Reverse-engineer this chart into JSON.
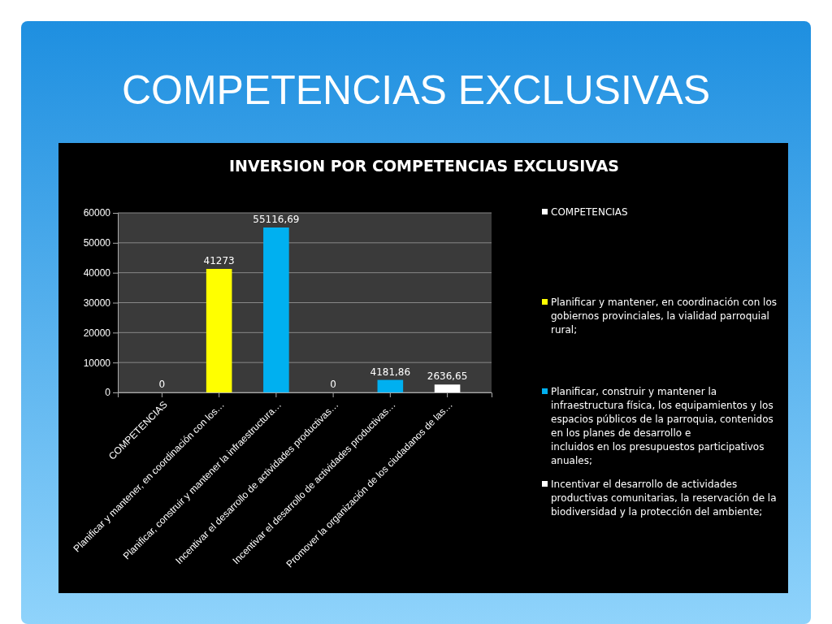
{
  "chart_data": {
    "type": "bar",
    "title": "COMPETENCIAS EXCLUSIVAS",
    "subtitle": "INVERSION POR COMPETENCIAS EXCLUSIVAS",
    "categories": [
      "COMPETENCIAS",
      "Planificar y mantener, en coordinación con los…",
      "Planificar, construir y mantener la infraestructura…",
      "Incentivar el desarrollo de actividades productivas…",
      "Incentivar el desarrollo de actividades productivas…",
      "Promover la organización de los ciudadanos de las…"
    ],
    "series": [
      {
        "name": "COMPETENCIAS",
        "color": "#ffffff",
        "values": [
          0,
          null,
          null,
          null,
          null,
          null
        ],
        "value_labels": [
          "0",
          null,
          null,
          null,
          null,
          null
        ]
      },
      {
        "name": "Planificar y mantener, en coordinación con los gobiernos provinciales, la vialidad parroquial rural;",
        "color": "#ffff00",
        "values": [
          null,
          41273,
          null,
          null,
          null,
          null
        ],
        "value_labels": [
          null,
          "41273",
          null,
          null,
          null,
          null
        ]
      },
      {
        "name": "Planificar, construir y mantener la infraestructura física, los equipamientos y los espacios públicos de la parroquia, contenidos en los planes de desarrollo e\nincluidos en los presupuestos  participativos anuales;",
        "color": "#00b0f0",
        "values": [
          null,
          null,
          55116.69,
          null,
          4181.86,
          null
        ],
        "value_labels": [
          null,
          null,
          "55116,69",
          null,
          "4181,86",
          null
        ]
      },
      {
        "name": "Incentivar el desarrollo de actividades productivas comunitarias, la reservación de la biodiversidad y la protección del ambiente;",
        "color": "#ffffff",
        "values": [
          null,
          null,
          null,
          0,
          null,
          2636.65
        ],
        "value_labels": [
          null,
          null,
          null,
          "0",
          null,
          "2636,65"
        ]
      }
    ],
    "ylim": [
      0,
      60000
    ],
    "yticks": [
      0,
      10000,
      20000,
      30000,
      40000,
      50000,
      60000
    ],
    "grid": "y",
    "legend": "right"
  }
}
